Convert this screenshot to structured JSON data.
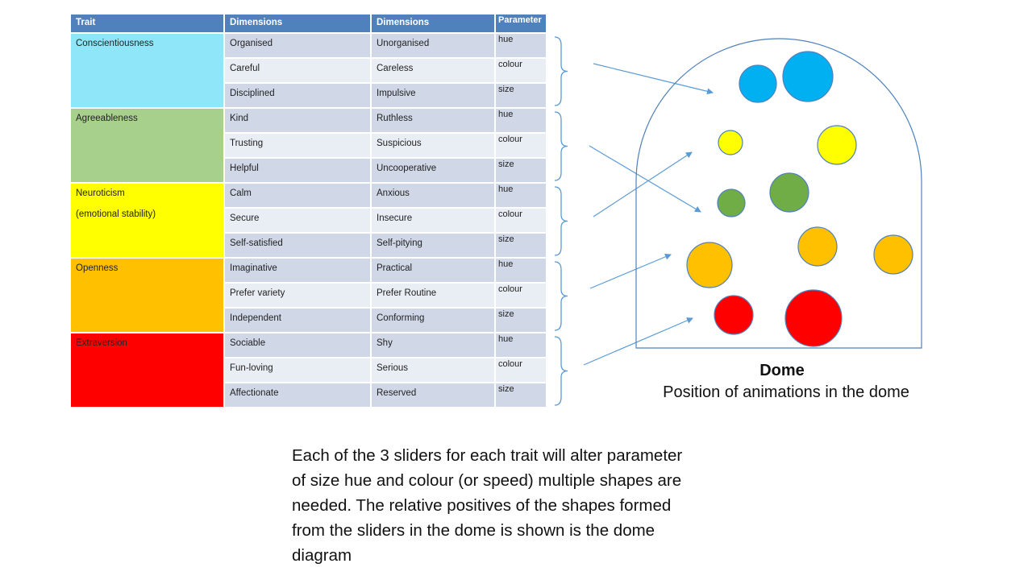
{
  "table": {
    "headers": [
      "Trait",
      "Dimensions",
      "Dimensions",
      "Parameter"
    ],
    "groups": [
      {
        "trait": "Conscientiousness",
        "trait_sub": "",
        "color": "#8ee6f8",
        "rows": [
          {
            "pos": "Organised",
            "neg": "Unorganised",
            "param": "hue"
          },
          {
            "pos": "Careful",
            "neg": "Careless",
            "param": "colour"
          },
          {
            "pos": "Disciplined",
            "neg": "Impulsive",
            "param": "size"
          }
        ]
      },
      {
        "trait": "Agreeableness",
        "trait_sub": "",
        "color": "#a8d08d",
        "rows": [
          {
            "pos": "Kind",
            "neg": "Ruthless",
            "param": "hue"
          },
          {
            "pos": "Trusting",
            "neg": "Suspicious",
            "param": "colour"
          },
          {
            "pos": "Helpful",
            "neg": "Uncooperative",
            "param": "size"
          }
        ]
      },
      {
        "trait": "Neuroticism",
        "trait_sub": "(emotional stability)",
        "color": "#ffff00",
        "rows": [
          {
            "pos": "Calm",
            "neg": "Anxious",
            "param": "hue"
          },
          {
            "pos": "Secure",
            "neg": "Insecure",
            "param": "colour"
          },
          {
            "pos": "Self-satisfied",
            "neg": "Self-pitying",
            "param": "size"
          }
        ]
      },
      {
        "trait": "Openness",
        "trait_sub": "",
        "color": "#ffc000",
        "rows": [
          {
            "pos": "Imaginative",
            "neg": "Practical",
            "param": "hue"
          },
          {
            "pos": "Prefer variety",
            "neg": "Prefer Routine",
            "param": "colour"
          },
          {
            "pos": "Independent",
            "neg": "Conforming",
            "param": "size"
          }
        ]
      },
      {
        "trait": "Extraversion",
        "trait_sub": "",
        "color": "#ff0000",
        "rows": [
          {
            "pos": "Sociable",
            "neg": "Shy",
            "param": "hue"
          },
          {
            "pos": "Fun-loving",
            "neg": "Serious",
            "param": "colour"
          },
          {
            "pos": "Affectionate",
            "neg": "Reserved",
            "param": "size"
          }
        ]
      }
    ]
  },
  "dome": {
    "title": "Dome",
    "caption": "Position of animations in the dome",
    "outline_color": "#4f81bd",
    "circle_colors": {
      "blue": "#00b0f0",
      "yellow": "#ffff00",
      "green": "#70ad47",
      "orange": "#ffc000",
      "red": "#ff0000"
    }
  },
  "description": "Each of the 3 sliders for each trait will alter parameter\nof size hue and colour (or speed)  multiple shapes are\nneeded. The relative positives of the shapes formed\nfrom the sliders in the dome is shown is the dome\ndiagram"
}
